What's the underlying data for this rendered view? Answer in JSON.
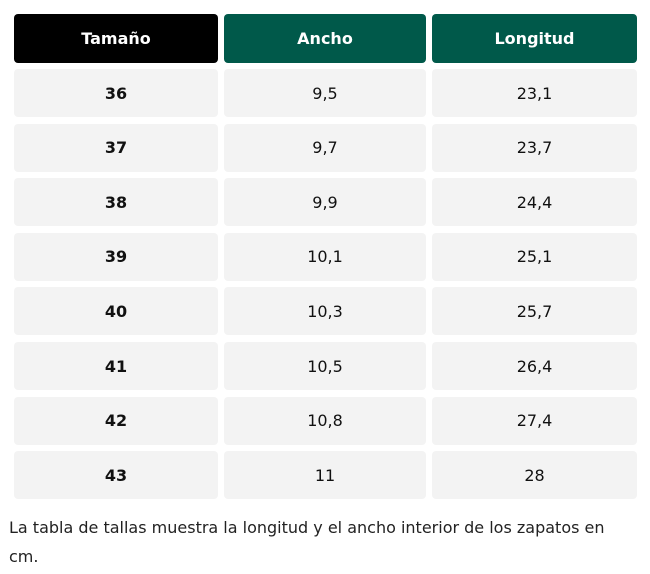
{
  "table": {
    "header": [
      "Tamaño",
      "Ancho",
      "Longitud"
    ],
    "rows": [
      [
        "36",
        "9,5",
        "23,1"
      ],
      [
        "37",
        "9,7",
        "23,7"
      ],
      [
        "38",
        "9,9",
        "24,4"
      ],
      [
        "39",
        "10,1",
        "25,1"
      ],
      [
        "40",
        "10,3",
        "25,7"
      ],
      [
        "41",
        "10,5",
        "26,4"
      ],
      [
        "42",
        "10,8",
        "27,4"
      ],
      [
        "43",
        "11",
        "28"
      ]
    ]
  },
  "caption": "La tabla de tallas muestra la longitud y el ancho interior de los zapatos en cm."
}
